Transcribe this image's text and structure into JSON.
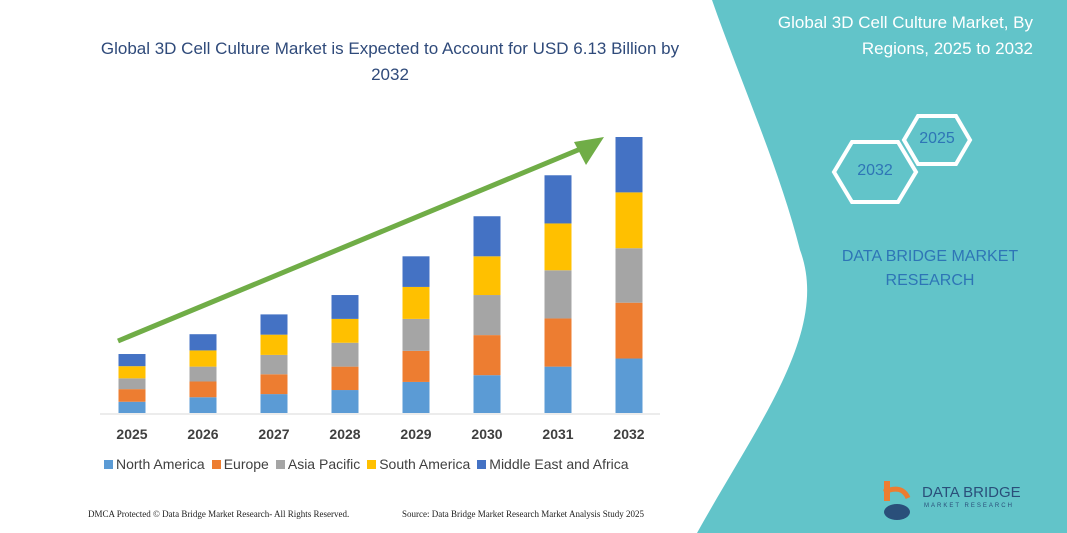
{
  "header": {
    "title": "Global 3D Cell Culture Market is Expected to Account for USD 6.13 Billion by 2032",
    "side_title": "Global 3D Cell Culture Market, By Regions, 2025 to 2032",
    "hex_start": "2025",
    "hex_end": "2032",
    "brand": "DATA BRIDGE MARKET RESEARCH"
  },
  "footer": {
    "copyright": "DMCA Protected © Data Bridge Market Research- All Rights Reserved.",
    "source": "Source: Data Bridge Market Research  Market Analysis Study 2025",
    "logo_text": "DATA BRIDGE",
    "logo_sub": "MARKET RESEARCH"
  },
  "colors": {
    "panel": "#62c4c9",
    "arrow": "#70ad47"
  },
  "chart_data": {
    "type": "bar",
    "stacked": true,
    "categories": [
      "2025",
      "2026",
      "2027",
      "2028",
      "2029",
      "2030",
      "2031",
      "2032"
    ],
    "series": [
      {
        "name": "North America",
        "color": "#5b9bd5",
        "values": [
          0.25,
          0.35,
          0.42,
          0.51,
          0.69,
          0.84,
          1.03,
          1.21
        ]
      },
      {
        "name": "Europe",
        "color": "#ed7d31",
        "values": [
          0.28,
          0.35,
          0.44,
          0.52,
          0.69,
          0.89,
          1.07,
          1.24
        ]
      },
      {
        "name": "Asia Pacific",
        "color": "#a5a5a5",
        "values": [
          0.24,
          0.33,
          0.43,
          0.53,
          0.71,
          0.89,
          1.07,
          1.21
        ]
      },
      {
        "name": "South America",
        "color": "#ffc000",
        "values": [
          0.27,
          0.36,
          0.45,
          0.53,
          0.71,
          0.86,
          1.04,
          1.24
        ]
      },
      {
        "name": "Middle East and Africa",
        "color": "#4472c4",
        "values": [
          0.27,
          0.36,
          0.45,
          0.53,
          0.68,
          0.89,
          1.07,
          1.23
        ]
      }
    ],
    "unit": "USD Billion",
    "legend": "bottom",
    "grid": false,
    "trend_arrow": true
  }
}
